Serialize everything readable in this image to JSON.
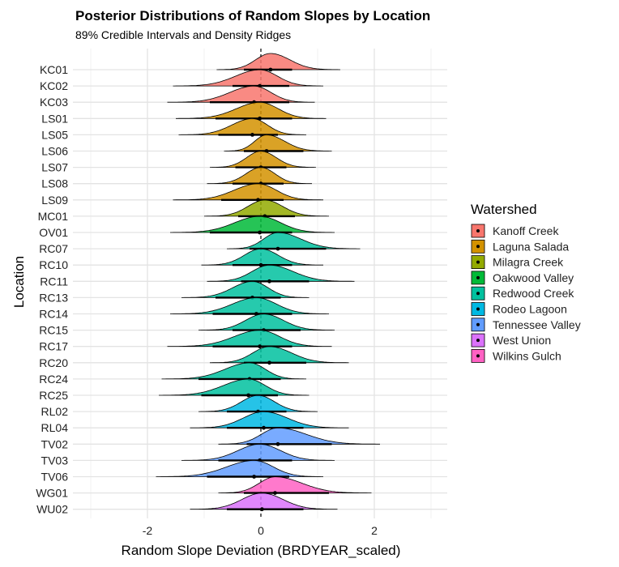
{
  "chart_data": {
    "type": "density ridges with credible intervals",
    "title": "Posterior Distributions of Random Slopes by Location",
    "subtitle": "89% Credible Intervals and Density Ridges",
    "xlabel": "Random Slope Deviation (BRDYEAR_scaled)",
    "ylabel": "Location",
    "xlim": [
      -3.3,
      3.3
    ],
    "x_ticks": [
      -2,
      0,
      2
    ],
    "reference_line_x": 0,
    "grid": true,
    "legend": {
      "title": "Watershed",
      "placement": "right",
      "entries": [
        {
          "name": "Kanoff Creek",
          "color": "#F8766D"
        },
        {
          "name": "Laguna Salada",
          "color": "#D39200"
        },
        {
          "name": "Milagra Creek",
          "color": "#93AA00"
        },
        {
          "name": "Oakwood Valley",
          "color": "#00BA38"
        },
        {
          "name": "Redwood Creek",
          "color": "#00C19F"
        },
        {
          "name": "Rodeo Lagoon",
          "color": "#00B9E3"
        },
        {
          "name": "Tennessee Valley",
          "color": "#619CFF"
        },
        {
          "name": "West Union",
          "color": "#DB72FB"
        },
        {
          "name": "Wilkins Gulch",
          "color": "#FF61C3"
        }
      ]
    },
    "rows": [
      {
        "location": "KC01",
        "watershed": "Kanoff Creek",
        "median": 0.17,
        "ci89": [
          -0.3,
          0.55
        ],
        "range": [
          -0.78,
          1.4
        ]
      },
      {
        "location": "KC02",
        "watershed": "Kanoff Creek",
        "median": -0.02,
        "ci89": [
          -0.5,
          0.5
        ],
        "range": [
          -1.55,
          1.1
        ]
      },
      {
        "location": "KC03",
        "watershed": "Kanoff Creek",
        "median": -0.12,
        "ci89": [
          -0.9,
          0.5
        ],
        "range": [
          -1.65,
          0.95
        ]
      },
      {
        "location": "LS01",
        "watershed": "Laguna Salada",
        "median": -0.02,
        "ci89": [
          -0.8,
          0.55
        ],
        "range": [
          -1.5,
          1.15
        ]
      },
      {
        "location": "LS05",
        "watershed": "Laguna Salada",
        "median": -0.15,
        "ci89": [
          -0.75,
          0.3
        ],
        "range": [
          -1.45,
          0.8
        ]
      },
      {
        "location": "LS06",
        "watershed": "Laguna Salada",
        "median": 0.1,
        "ci89": [
          -0.3,
          0.75
        ],
        "range": [
          -0.65,
          1.25
        ]
      },
      {
        "location": "LS07",
        "watershed": "Laguna Salada",
        "median": 0.0,
        "ci89": [
          -0.45,
          0.45
        ],
        "range": [
          -0.9,
          0.97
        ]
      },
      {
        "location": "LS08",
        "watershed": "Laguna Salada",
        "median": 0.0,
        "ci89": [
          -0.5,
          0.4
        ],
        "range": [
          -0.95,
          0.9
        ]
      },
      {
        "location": "LS09",
        "watershed": "Laguna Salada",
        "median": -0.05,
        "ci89": [
          -0.7,
          0.4
        ],
        "range": [
          -1.55,
          1.1
        ]
      },
      {
        "location": "MC01",
        "watershed": "Milagra Creek",
        "median": 0.07,
        "ci89": [
          -0.4,
          0.6
        ],
        "range": [
          -1.0,
          1.2
        ]
      },
      {
        "location": "OV01",
        "watershed": "Oakwood Valley",
        "median": -0.02,
        "ci89": [
          -0.9,
          0.55
        ],
        "range": [
          -1.6,
          1.3
        ]
      },
      {
        "location": "RC07",
        "watershed": "Redwood Creek",
        "median": 0.3,
        "ci89": [
          -0.2,
          1.15
        ],
        "range": [
          -0.6,
          1.75
        ]
      },
      {
        "location": "RC10",
        "watershed": "Redwood Creek",
        "median": 0.0,
        "ci89": [
          -0.5,
          0.55
        ],
        "range": [
          -1.05,
          1.1
        ]
      },
      {
        "location": "RC11",
        "watershed": "Redwood Creek",
        "median": 0.15,
        "ci89": [
          -0.35,
          0.85
        ],
        "range": [
          -0.95,
          1.65
        ]
      },
      {
        "location": "RC13",
        "watershed": "Redwood Creek",
        "median": -0.15,
        "ci89": [
          -0.8,
          0.35
        ],
        "range": [
          -1.4,
          0.85
        ]
      },
      {
        "location": "RC14",
        "watershed": "Redwood Creek",
        "median": -0.08,
        "ci89": [
          -0.85,
          0.55
        ],
        "range": [
          -1.6,
          1.2
        ]
      },
      {
        "location": "RC15",
        "watershed": "Redwood Creek",
        "median": 0.05,
        "ci89": [
          -0.5,
          0.7
        ],
        "range": [
          -1.1,
          1.3
        ]
      },
      {
        "location": "RC17",
        "watershed": "Redwood Creek",
        "median": -0.02,
        "ci89": [
          -0.85,
          0.55
        ],
        "range": [
          -1.65,
          1.25
        ]
      },
      {
        "location": "RC20",
        "watershed": "Redwood Creek",
        "median": 0.15,
        "ci89": [
          -0.3,
          0.8
        ],
        "range": [
          -0.9,
          1.55
        ]
      },
      {
        "location": "RC24",
        "watershed": "Redwood Creek",
        "median": -0.2,
        "ci89": [
          -1.1,
          0.35
        ],
        "range": [
          -1.75,
          0.8
        ]
      },
      {
        "location": "RC25",
        "watershed": "Redwood Creek",
        "median": -0.22,
        "ci89": [
          -1.05,
          0.3
        ],
        "range": [
          -1.8,
          0.85
        ]
      },
      {
        "location": "RL02",
        "watershed": "Rodeo Lagoon",
        "median": -0.05,
        "ci89": [
          -0.6,
          0.45
        ],
        "range": [
          -1.1,
          1.0
        ]
      },
      {
        "location": "RL04",
        "watershed": "Rodeo Lagoon",
        "median": 0.05,
        "ci89": [
          -0.6,
          0.75
        ],
        "range": [
          -1.25,
          1.55
        ]
      },
      {
        "location": "TV02",
        "watershed": "Tennessee Valley",
        "median": 0.3,
        "ci89": [
          -0.25,
          1.25
        ],
        "range": [
          -0.75,
          2.1
        ]
      },
      {
        "location": "TV03",
        "watershed": "Tennessee Valley",
        "median": -0.02,
        "ci89": [
          -0.75,
          0.55
        ],
        "range": [
          -1.4,
          1.3
        ]
      },
      {
        "location": "TV06",
        "watershed": "Tennessee Valley",
        "median": -0.12,
        "ci89": [
          -0.95,
          0.5
        ],
        "range": [
          -1.85,
          1.1
        ]
      },
      {
        "location": "WG01",
        "watershed": "Wilkins Gulch",
        "median": 0.25,
        "ci89": [
          -0.3,
          1.2
        ],
        "range": [
          -0.75,
          1.95
        ]
      },
      {
        "location": "WU02",
        "watershed": "West Union",
        "median": 0.02,
        "ci89": [
          -0.6,
          0.75
        ],
        "range": [
          -1.25,
          1.35
        ]
      }
    ]
  }
}
